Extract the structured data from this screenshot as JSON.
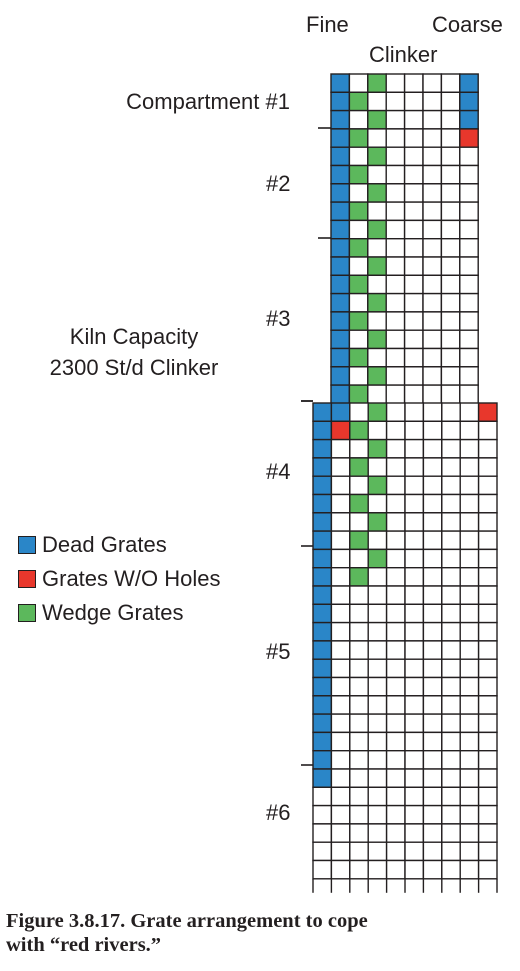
{
  "labels": {
    "fine": "Fine",
    "coarse": "Coarse",
    "clinker": "Clinker",
    "compartment1": "Compartment #1",
    "c2": "#2",
    "c3": "#3",
    "c4": "#4",
    "c5": "#5",
    "c6": "#6",
    "kiln_line1": "Kiln Capacity",
    "kiln_line2": "2300 St/d Clinker"
  },
  "legend": [
    {
      "label": "Dead Grates",
      "color": "#2a86c8"
    },
    {
      "label": "Grates W/O Holes",
      "color": "#e8372c"
    },
    {
      "label": "Wedge Grates",
      "color": "#5cb85c"
    }
  ],
  "caption": {
    "line1": "Figure 3.8.17. Grate arrangement to cope",
    "line2": "with “red rivers.”"
  },
  "colors": {
    "dead": "#2a86c8",
    "no_holes": "#e8372c",
    "wedge": "#5cb85c",
    "line": "#231f20"
  },
  "grate_layout": {
    "upper_section": {
      "columns": 8,
      "rows": 18,
      "dead_columns": [
        0
      ],
      "coarse_dead_rows": [
        0,
        1,
        2
      ],
      "coarse_red_rows": [
        3
      ],
      "wedge_pattern": "alternating columns 1 and 2, all rows"
    },
    "lower_section": {
      "columns": 10,
      "rows": 26,
      "dead_rows_first_column": 21,
      "dead_second_column_row0": true,
      "red_cells": [
        "row 0, last column",
        "row 1, second column"
      ],
      "wedge_rows": 10
    },
    "compartment_dividers": [
      "between #1 and #2",
      "between #2 and #3",
      "between #3 and #4",
      "between #4 and #5",
      "between #5 and #6"
    ]
  }
}
